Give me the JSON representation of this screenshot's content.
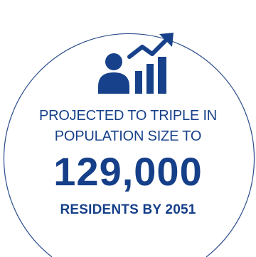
{
  "stat": {
    "headline_line1": "PROJECTED TO TRIPLE IN",
    "headline_line2": "POPULATION SIZE TO",
    "figure": "129,000",
    "subline": "RESIDENTS BY 2051"
  },
  "icon": {
    "name": "population-growth-icon"
  },
  "colors": {
    "accent": "#17418a",
    "ring": "#2b4d8c",
    "background": "#ffffff"
  }
}
